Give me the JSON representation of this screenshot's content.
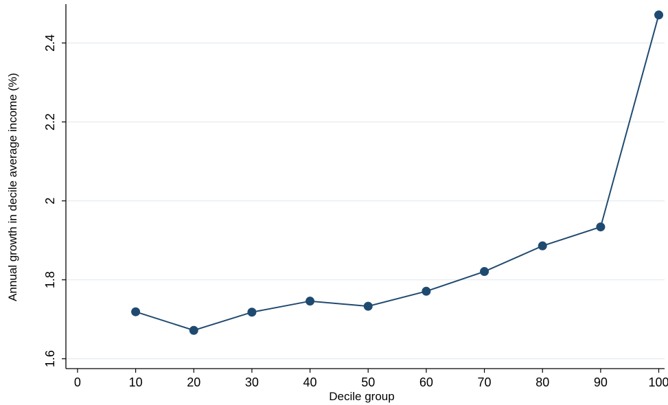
{
  "chart_data": {
    "type": "line",
    "title": "",
    "xlabel": "Decile group",
    "ylabel": "Annual growth in decile average income (%)",
    "xlim": [
      -2,
      101
    ],
    "ylim": [
      1.575,
      2.495
    ],
    "x_ticks": [
      0,
      10,
      20,
      30,
      40,
      50,
      60,
      70,
      80,
      90,
      100
    ],
    "y_ticks": [
      1.6,
      1.8,
      2,
      2.2,
      2.4
    ],
    "x_tick_labels": [
      "0",
      "10",
      "20",
      "30",
      "40",
      "50",
      "60",
      "70",
      "80",
      "90",
      "100"
    ],
    "y_tick_labels": [
      "1.6",
      "1.8",
      "2",
      "2.2",
      "2.4"
    ],
    "grid": "horizontal",
    "legend": "none",
    "series": [
      {
        "color": "#1f4a70",
        "marker": "circle",
        "x": [
          10,
          20,
          30,
          40,
          50,
          60,
          70,
          80,
          90,
          100
        ],
        "y": [
          1.719,
          1.672,
          1.718,
          1.746,
          1.733,
          1.771,
          1.821,
          1.886,
          1.934,
          2.471
        ]
      }
    ],
    "colors": {
      "line": "#1f4a70",
      "grid": "#e6ecf0",
      "axis": "#000000"
    }
  }
}
